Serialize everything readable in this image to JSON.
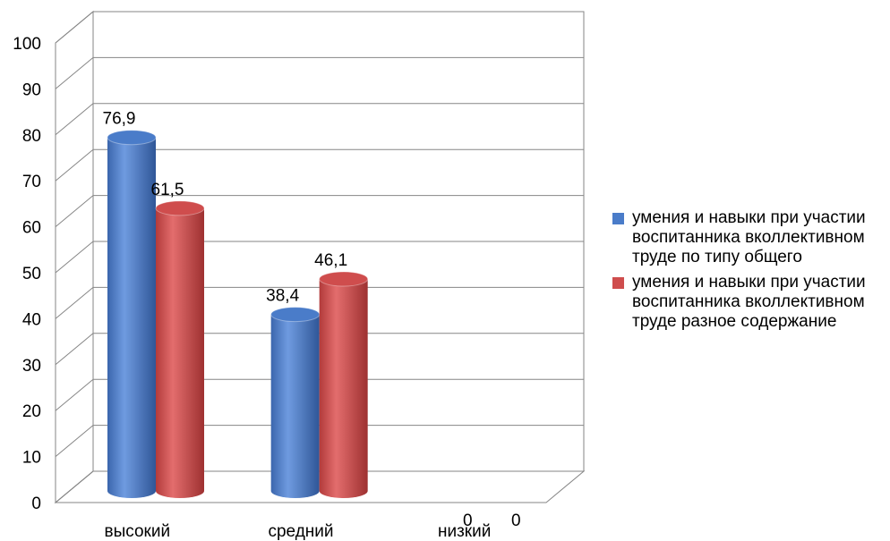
{
  "chart_data": {
    "type": "bar",
    "categories": [
      "высокий",
      "средний",
      "низкий"
    ],
    "series": [
      {
        "name": "умения и навыки при участии воспитанника вколлективном труде по типу общего",
        "values": [
          76.9,
          38.4,
          0
        ],
        "labels": [
          "76,9",
          "38,4",
          "0"
        ],
        "color": "#4a7cc9"
      },
      {
        "name": "умения и навыки при участии воспитанника вколлективном труде разное содержание",
        "values": [
          61.5,
          46.1,
          0
        ],
        "labels": [
          "61,5",
          "46,1",
          "0"
        ],
        "color": "#cf4d4d"
      }
    ],
    "ylim": [
      0,
      100
    ],
    "yticks": [
      "0",
      "10",
      "20",
      "30",
      "40",
      "50",
      "60",
      "70",
      "80",
      "90",
      "100"
    ],
    "grid": true,
    "legend_position": "right",
    "style": "3d-cylinder"
  }
}
